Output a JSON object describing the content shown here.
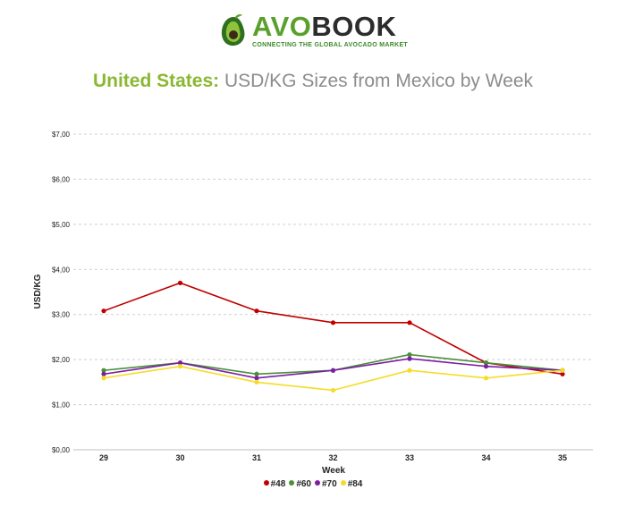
{
  "brand": {
    "name_part1": "AVO",
    "name_part2": "BOOK",
    "tagline": "CONNECTING THE GLOBAL AVOCADO MARKET"
  },
  "colors": {
    "brand_green": "#5aa02c",
    "title_accent": "#8ab832",
    "title_gray": "#8c8c8c"
  },
  "chart_data": {
    "type": "line",
    "title_country": "United States:",
    "title": "USD/KG Sizes from Mexico by Week",
    "xlabel": "Week",
    "ylabel": "USD/KG",
    "x": [
      "29",
      "30",
      "31",
      "32",
      "33",
      "34",
      "35"
    ],
    "ylim": [
      0,
      7
    ],
    "yticks": [
      "$0,00",
      "$1,00",
      "$2,00",
      "$3,00",
      "$4,00",
      "$5,00",
      "$6,00",
      "$7,00"
    ],
    "grid": true,
    "legend_position": "bottom",
    "series": [
      {
        "name": "#48",
        "color": "#c00000",
        "values": [
          3.08,
          3.7,
          3.08,
          2.82,
          2.82,
          1.93,
          1.68
        ]
      },
      {
        "name": "#60",
        "color": "#4a8f3a",
        "values": [
          1.76,
          1.93,
          1.68,
          1.76,
          2.11,
          1.93,
          1.76
        ]
      },
      {
        "name": "#70",
        "color": "#7b1fa2",
        "values": [
          1.68,
          1.93,
          1.59,
          1.76,
          2.02,
          1.85,
          1.76
        ]
      },
      {
        "name": "#84",
        "color": "#f5dc28",
        "values": [
          1.59,
          1.85,
          1.5,
          1.32,
          1.76,
          1.59,
          1.76
        ]
      }
    ]
  }
}
